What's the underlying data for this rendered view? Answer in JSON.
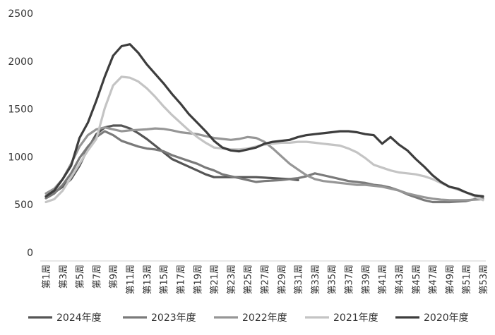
{
  "chart_data": {
    "type": "line",
    "title": "",
    "xlabel": "",
    "ylabel": "",
    "ylim": [
      0,
      2500
    ],
    "yticks": [
      0,
      500,
      1000,
      1500,
      2000,
      2500
    ],
    "grid": false,
    "legend_position": "bottom",
    "x": [
      "第1周",
      "第2周",
      "第3周",
      "第4周",
      "第5周",
      "第6周",
      "第7周",
      "第8周",
      "第9周",
      "第10周",
      "第11周",
      "第12周",
      "第13周",
      "第14周",
      "第15周",
      "第16周",
      "第17周",
      "第18周",
      "第19周",
      "第20周",
      "第21周",
      "第22周",
      "第23周",
      "第24周",
      "第25周",
      "第26周",
      "第27周",
      "第28周",
      "第29周",
      "第30周",
      "第31周",
      "第32周",
      "第33周",
      "第34周",
      "第35周",
      "第36周",
      "第37周",
      "第38周",
      "第39周",
      "第40周",
      "第41周",
      "第42周",
      "第43周",
      "第44周",
      "第45周",
      "第46周",
      "第47周",
      "第48周",
      "第49周",
      "第50周",
      "第51周",
      "第52周",
      "第53周"
    ],
    "x_tick_labels": [
      "第1周",
      "第3周",
      "第5周",
      "第7周",
      "第9周",
      "第11周",
      "第13周",
      "第15周",
      "第17周",
      "第19周",
      "第21周",
      "第23周",
      "第25周",
      "第27周",
      "第29周",
      "第31周",
      "第33周",
      "第35周",
      "第37周",
      "第39周",
      "第41周",
      "第43周",
      "第45周",
      "第47周",
      "第49周",
      "第51周",
      "第53周"
    ],
    "series": [
      {
        "name": "2024年度",
        "color": "#555555",
        "values": [
          580,
          620,
          680,
          760,
          900,
          1080,
          1230,
          1300,
          1320,
          1320,
          1290,
          1240,
          1180,
          1110,
          1040,
          970,
          930,
          890,
          850,
          810,
          780,
          780,
          780,
          780,
          780,
          780,
          775,
          770,
          765,
          760,
          750,
          null,
          null,
          null,
          null,
          null,
          null,
          null,
          null,
          null,
          null,
          null,
          null,
          null,
          null,
          null,
          null,
          null,
          null,
          null,
          null,
          null,
          null
        ]
      },
      {
        "name": "2023年度",
        "color": "#7a7a7a",
        "values": [
          560,
          610,
          700,
          820,
          980,
          1100,
          1200,
          1260,
          1220,
          1160,
          1130,
          1100,
          1080,
          1070,
          1050,
          1010,
          980,
          950,
          920,
          880,
          850,
          810,
          790,
          770,
          750,
          730,
          740,
          745,
          750,
          760,
          770,
          790,
          820,
          800,
          780,
          760,
          740,
          730,
          720,
          700,
          690,
          670,
          640,
          600,
          570,
          540,
          520,
          520,
          520,
          525,
          530,
          550,
          560
        ]
      },
      {
        "name": "2022年度",
        "color": "#969696",
        "values": [
          610,
          660,
          760,
          920,
          1100,
          1220,
          1280,
          1300,
          1280,
          1260,
          1270,
          1275,
          1280,
          1290,
          1285,
          1270,
          1250,
          1240,
          1230,
          1210,
          1190,
          1180,
          1170,
          1180,
          1200,
          1190,
          1150,
          1080,
          1000,
          920,
          860,
          800,
          760,
          740,
          730,
          720,
          710,
          700,
          700,
          690,
          680,
          660,
          640,
          610,
          590,
          570,
          555,
          545,
          540,
          540,
          540,
          545,
          550
        ]
      },
      {
        "name": "2021年度",
        "color": "#c4c4c4",
        "values": [
          520,
          550,
          640,
          780,
          920,
          1060,
          1180,
          1500,
          1740,
          1830,
          1820,
          1780,
          1710,
          1620,
          1520,
          1430,
          1350,
          1270,
          1200,
          1140,
          1090,
          1080,
          1070,
          1070,
          1080,
          1100,
          1120,
          1130,
          1140,
          1140,
          1150,
          1150,
          1140,
          1130,
          1120,
          1110,
          1080,
          1040,
          980,
          910,
          880,
          850,
          830,
          820,
          810,
          790,
          760,
          720,
          680,
          650,
          620,
          580,
          540
        ]
      },
      {
        "name": "2020年度",
        "color": "#3d3d3d",
        "values": [
          580,
          640,
          760,
          900,
          1190,
          1350,
          1580,
          1830,
          2050,
          2150,
          2170,
          2080,
          1960,
          1860,
          1760,
          1650,
          1550,
          1440,
          1350,
          1260,
          1160,
          1090,
          1060,
          1050,
          1070,
          1090,
          1130,
          1150,
          1160,
          1170,
          1200,
          1220,
          1230,
          1240,
          1250,
          1260,
          1260,
          1250,
          1230,
          1220,
          1130,
          1200,
          1120,
          1060,
          970,
          890,
          800,
          730,
          680,
          660,
          620,
          590,
          580
        ]
      }
    ]
  }
}
